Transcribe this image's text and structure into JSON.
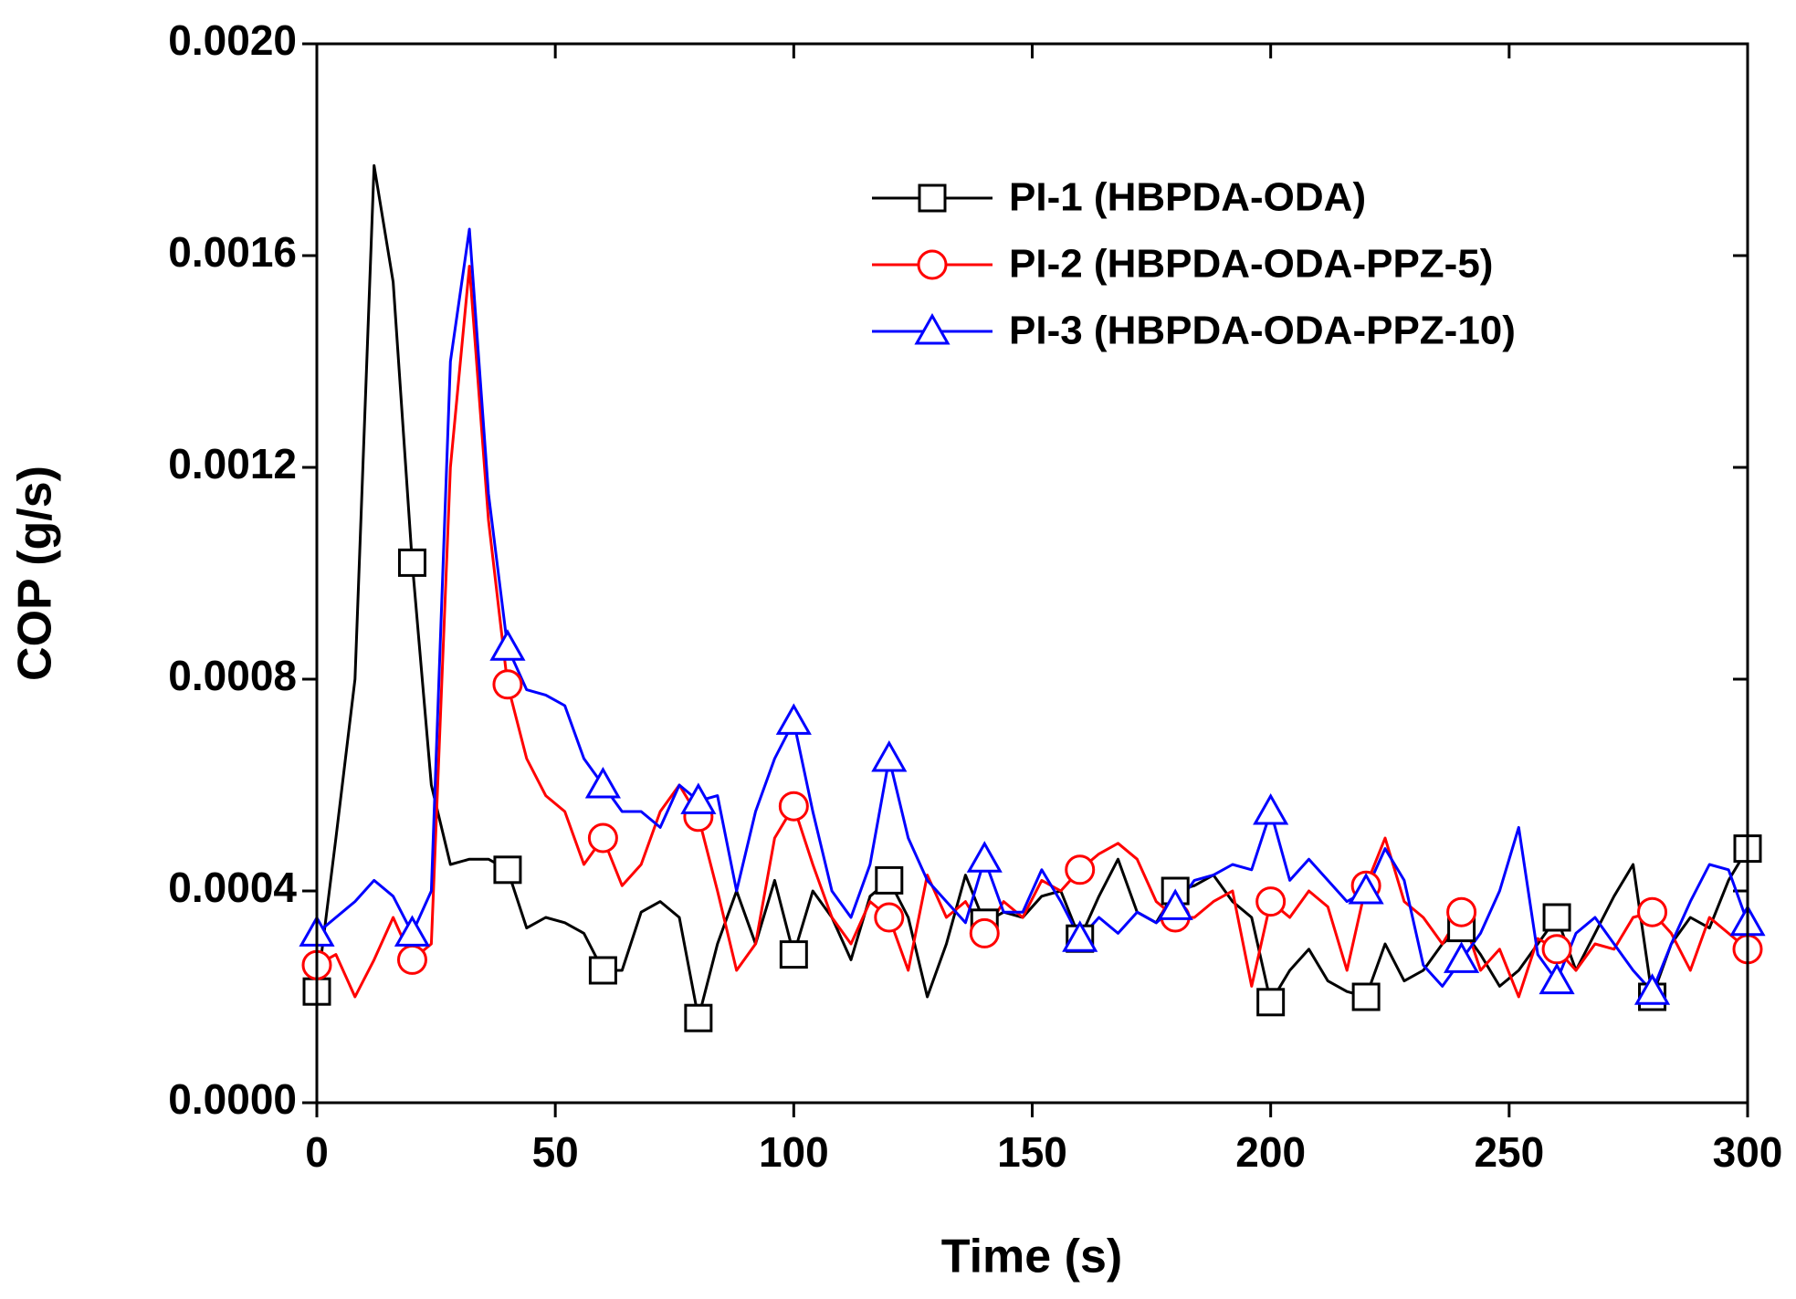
{
  "chart_data": {
    "type": "line",
    "xlabel": "Time (s)",
    "ylabel": "COP (g/s)",
    "xlim": [
      0,
      300
    ],
    "xticks": [
      0,
      50,
      100,
      150,
      200,
      250,
      300
    ],
    "ylim": [
      0,
      0.002
    ],
    "yticks": [
      {
        "value": 0,
        "label": "0.0000"
      },
      {
        "value": 0.0004,
        "label": "0.0004"
      },
      {
        "value": 0.0008,
        "label": "0.0008"
      },
      {
        "value": 0.0012,
        "label": "0.0012"
      },
      {
        "value": 0.0016,
        "label": "0.0016"
      },
      {
        "value": 0.002,
        "label": "0.0020"
      }
    ],
    "legend": "upper right",
    "x": [
      0,
      4,
      8,
      12,
      16,
      20,
      24,
      28,
      32,
      36,
      40,
      44,
      48,
      52,
      56,
      60,
      64,
      68,
      72,
      76,
      80,
      84,
      88,
      92,
      96,
      100,
      104,
      108,
      112,
      116,
      120,
      124,
      128,
      132,
      136,
      140,
      144,
      148,
      152,
      156,
      160,
      164,
      168,
      172,
      176,
      180,
      184,
      188,
      192,
      196,
      200,
      204,
      208,
      212,
      216,
      220,
      224,
      228,
      232,
      236,
      240,
      244,
      248,
      252,
      256,
      260,
      264,
      268,
      272,
      276,
      280,
      284,
      288,
      292,
      296,
      300
    ],
    "series": [
      {
        "name": "PI-1 (HBPDA-ODA)",
        "color": "#000000",
        "marker": "square",
        "values": [
          0.00021,
          0.0005,
          0.0008,
          0.00177,
          0.00155,
          0.00102,
          0.0006,
          0.00045,
          0.00046,
          0.00046,
          0.00044,
          0.00033,
          0.00035,
          0.00034,
          0.00032,
          0.00025,
          0.00025,
          0.00036,
          0.00038,
          0.00035,
          0.00016,
          0.0003,
          0.0004,
          0.0003,
          0.00042,
          0.00028,
          0.0004,
          0.00035,
          0.00027,
          0.00039,
          0.00042,
          0.00035,
          0.0002,
          0.0003,
          0.00043,
          0.00034,
          0.00036,
          0.00035,
          0.00039,
          0.0004,
          0.00031,
          0.00039,
          0.00046,
          0.00036,
          0.00034,
          0.0004,
          0.00041,
          0.00043,
          0.00038,
          0.00035,
          0.00019,
          0.00025,
          0.00029,
          0.00023,
          0.00021,
          0.0002,
          0.0003,
          0.00023,
          0.00025,
          0.0003,
          0.00033,
          0.00028,
          0.00022,
          0.00025,
          0.0003,
          0.00035,
          0.00025,
          0.00032,
          0.00039,
          0.00045,
          0.0002,
          0.0003,
          0.00035,
          0.00033,
          0.00042,
          0.00048
        ]
      },
      {
        "name": "PI-2 (HBPDA-ODA-PPZ-5)",
        "color": "#ff0000",
        "marker": "circle",
        "values": [
          0.00026,
          0.00028,
          0.0002,
          0.00027,
          0.00035,
          0.00027,
          0.0003,
          0.0012,
          0.00158,
          0.0011,
          0.00079,
          0.00065,
          0.00058,
          0.00055,
          0.00045,
          0.0005,
          0.00041,
          0.00045,
          0.00055,
          0.0006,
          0.00054,
          0.0004,
          0.00025,
          0.0003,
          0.0005,
          0.00056,
          0.00045,
          0.00035,
          0.0003,
          0.00038,
          0.00035,
          0.00025,
          0.00043,
          0.00035,
          0.00038,
          0.00032,
          0.00038,
          0.00035,
          0.00042,
          0.0004,
          0.00044,
          0.00047,
          0.00049,
          0.00046,
          0.00038,
          0.00035,
          0.00035,
          0.00038,
          0.0004,
          0.00022,
          0.00038,
          0.00035,
          0.0004,
          0.00037,
          0.00025,
          0.00041,
          0.0005,
          0.00038,
          0.00035,
          0.0003,
          0.00036,
          0.00025,
          0.00029,
          0.0002,
          0.00031,
          0.00029,
          0.00025,
          0.0003,
          0.00029,
          0.00035,
          0.00036,
          0.00032,
          0.00025,
          0.00035,
          0.00032,
          0.00029
        ]
      },
      {
        "name": "PI-3 (HBPDA-ODA-PPZ-10)",
        "color": "#0000ff",
        "marker": "triangle",
        "values": [
          0.00032,
          0.00035,
          0.00038,
          0.00042,
          0.00039,
          0.00032,
          0.0004,
          0.0014,
          0.00165,
          0.00115,
          0.00086,
          0.00078,
          0.00077,
          0.00075,
          0.00065,
          0.0006,
          0.00055,
          0.00055,
          0.00052,
          0.0006,
          0.00057,
          0.00058,
          0.0004,
          0.00055,
          0.00065,
          0.00072,
          0.00055,
          0.0004,
          0.00035,
          0.00045,
          0.00065,
          0.0005,
          0.00042,
          0.00038,
          0.00034,
          0.00046,
          0.00036,
          0.00036,
          0.00044,
          0.00038,
          0.00031,
          0.00035,
          0.00032,
          0.00036,
          0.00034,
          0.00037,
          0.00042,
          0.00043,
          0.00045,
          0.00044,
          0.00055,
          0.00042,
          0.00046,
          0.00042,
          0.00038,
          0.0004,
          0.00048,
          0.00042,
          0.00026,
          0.00022,
          0.00027,
          0.00032,
          0.0004,
          0.00052,
          0.00028,
          0.00023,
          0.00032,
          0.00035,
          0.0003,
          0.00025,
          0.00021,
          0.0003,
          0.00038,
          0.00045,
          0.00044,
          0.00034
        ]
      }
    ]
  }
}
